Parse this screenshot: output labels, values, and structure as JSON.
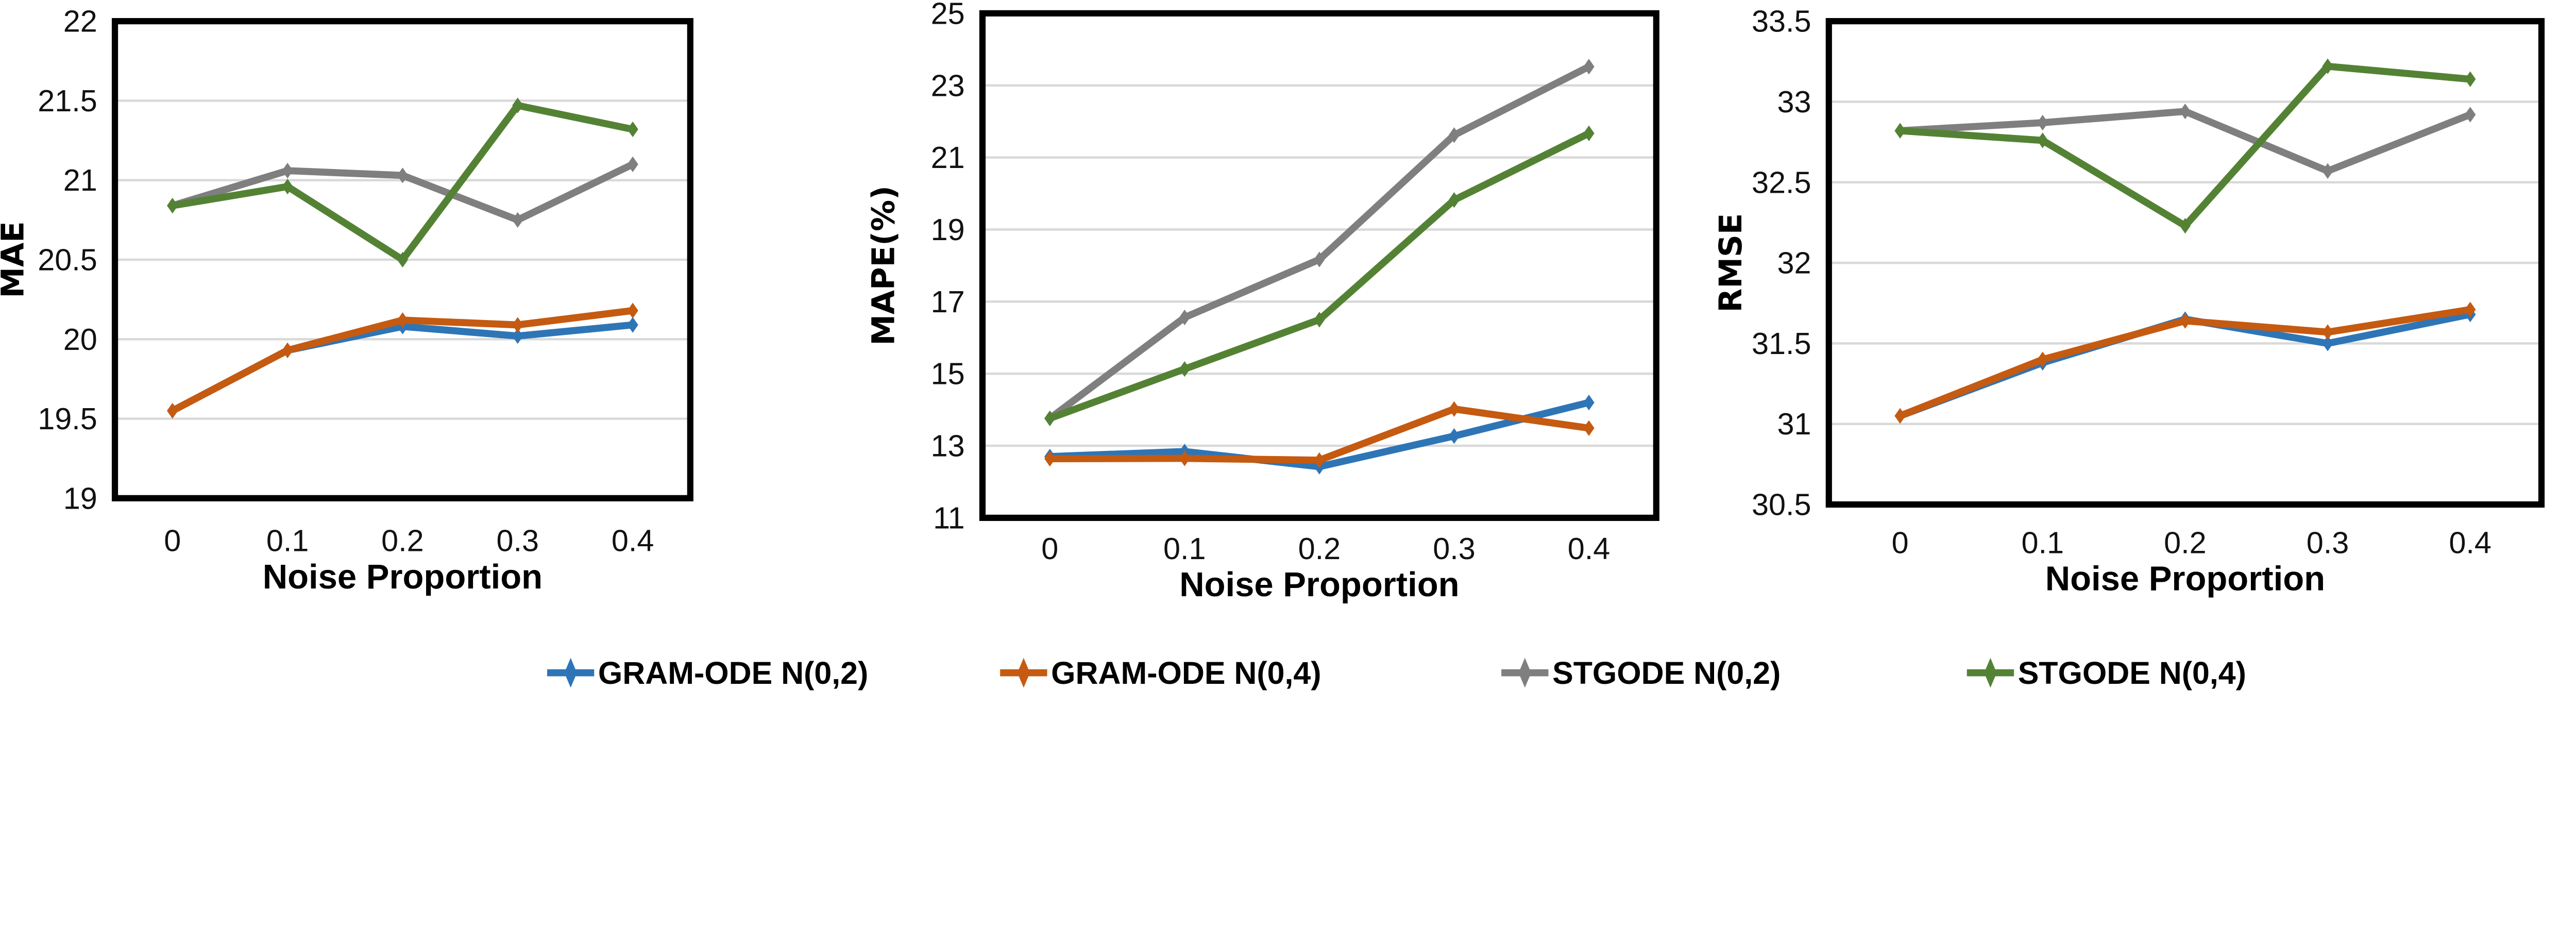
{
  "chart_data": [
    {
      "type": "line",
      "xlabel": "Noise Proportion",
      "ylabel": "MAE",
      "x": [
        0,
        0.1,
        0.2,
        0.3,
        0.4
      ],
      "x_tick_labels": [
        "0",
        "0.1",
        "0.2",
        "0.3",
        "0.4"
      ],
      "ylim": [
        19,
        22
      ],
      "y_ticks": [
        "19",
        "19.5",
        "20",
        "20.5",
        "21",
        "21.5",
        "22"
      ],
      "grid": "horizontal",
      "series": [
        {
          "name": "GRAM-ODE N(0,2)",
          "values": [
            19.55,
            19.93,
            20.08,
            20.02,
            20.09
          ]
        },
        {
          "name": "GRAM-ODE N(0,4)",
          "values": [
            19.55,
            19.93,
            20.12,
            20.09,
            20.18
          ]
        },
        {
          "name": "STGODE N(0,2)",
          "values": [
            20.84,
            21.06,
            21.03,
            20.75,
            21.1
          ]
        },
        {
          "name": "STGODE N(0,4)",
          "values": [
            20.84,
            20.96,
            20.5,
            21.47,
            21.32
          ]
        }
      ]
    },
    {
      "type": "line",
      "xlabel": "Noise Proportion",
      "ylabel": "MAPE(%)",
      "x": [
        0,
        0.1,
        0.2,
        0.3,
        0.4
      ],
      "x_tick_labels": [
        "0",
        "0.1",
        "0.2",
        "0.3",
        "0.4"
      ],
      "ylim": [
        11,
        25
      ],
      "y_ticks": [
        "11",
        "13",
        "15",
        "17",
        "19",
        "21",
        "23",
        "25"
      ],
      "grid": "horizontal",
      "series": [
        {
          "name": "GRAM-ODE N(0,2)",
          "values": [
            12.7,
            12.84,
            12.42,
            13.27,
            14.2
          ]
        },
        {
          "name": "GRAM-ODE N(0,4)",
          "values": [
            12.64,
            12.65,
            12.6,
            14.02,
            13.49
          ]
        },
        {
          "name": "STGODE N(0,2)",
          "values": [
            13.76,
            16.56,
            18.17,
            21.62,
            23.52
          ]
        },
        {
          "name": "STGODE N(0,4)",
          "values": [
            13.76,
            15.13,
            16.5,
            19.82,
            21.67
          ]
        }
      ]
    },
    {
      "type": "line",
      "xlabel": "Noise Proportion",
      "ylabel": "RMSE",
      "x": [
        0,
        0.1,
        0.2,
        0.3,
        0.4
      ],
      "x_tick_labels": [
        "0",
        "0.1",
        "0.2",
        "0.3",
        "0.4"
      ],
      "ylim": [
        30.5,
        33.5
      ],
      "y_ticks": [
        "30.5",
        "31",
        "31.5",
        "32",
        "32.5",
        "33",
        "33.5"
      ],
      "grid": "horizontal",
      "series": [
        {
          "name": "GRAM-ODE N(0,2)",
          "values": [
            31.05,
            31.38,
            31.65,
            31.5,
            31.68
          ]
        },
        {
          "name": "GRAM-ODE N(0,4)",
          "values": [
            31.05,
            31.4,
            31.64,
            31.57,
            31.71
          ]
        },
        {
          "name": "STGODE N(0,2)",
          "values": [
            32.82,
            32.87,
            32.94,
            32.57,
            32.92
          ]
        },
        {
          "name": "STGODE N(0,4)",
          "values": [
            32.82,
            32.76,
            32.23,
            33.22,
            33.14
          ]
        }
      ]
    }
  ],
  "legend": {
    "placement": "bottom",
    "items": [
      {
        "label": "GRAM-ODE N(0,2)",
        "color": "#2E75B6"
      },
      {
        "label": "GRAM-ODE N(0,4)",
        "color": "#C55A11"
      },
      {
        "label": "STGODE N(0,2)",
        "color": "#7F7F7F"
      },
      {
        "label": "STGODE N(0,4)",
        "color": "#548235"
      }
    ]
  }
}
